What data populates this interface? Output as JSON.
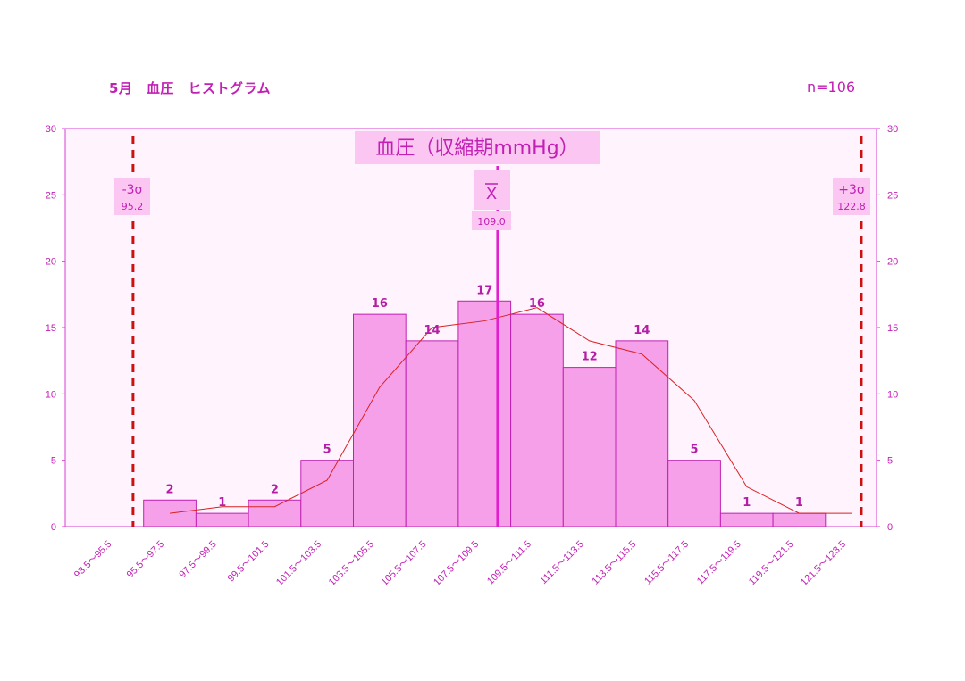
{
  "header": {
    "title": "5月　血圧　ヒストグラム",
    "n_label": "n=106"
  },
  "colors": {
    "bar_fill": "#f7a0ea",
    "bar_stroke": "#c021b2",
    "plot_bg": "#fff3fd",
    "axis": "#d63fd0",
    "text": "#c21fb4",
    "sigma_line": "#cc1111",
    "mean_line": "#e21fce",
    "trend_line": "#d92222",
    "label_bg": "#fbc6f2"
  },
  "chart_data": {
    "type": "bar",
    "title": "血圧（収縮期mmHg）",
    "categories": [
      "93.5～95.5",
      "95.5～97.5",
      "97.5～99.5",
      "99.5～101.5",
      "101.5～103.5",
      "103.5～105.5",
      "105.5～107.5",
      "107.5～109.5",
      "109.5～111.5",
      "111.5～113.5",
      "113.5～115.5",
      "115.5～117.5",
      "117.5～119.5",
      "119.5～121.5",
      "121.5～123.5"
    ],
    "values": [
      null,
      2,
      1,
      2,
      5,
      16,
      14,
      17,
      16,
      12,
      14,
      5,
      1,
      1,
      null
    ],
    "data_labels": [
      "",
      "2",
      "1",
      "2",
      "5",
      "16",
      "14",
      "17",
      "16",
      "12",
      "14",
      "5",
      "1",
      "1",
      ""
    ],
    "trend_line": [
      null,
      1,
      1.5,
      1.5,
      3.5,
      10.5,
      15,
      15.5,
      16.5,
      14,
      13,
      9.5,
      3,
      1,
      1
    ],
    "ylim": [
      0,
      30
    ],
    "yticks": [
      "0",
      "5",
      "10",
      "15",
      "20",
      "25",
      "30"
    ],
    "grid": false,
    "mean": {
      "symbol": "X",
      "label": "109.0",
      "value": 109.0
    },
    "minus3sigma": {
      "label": "-3σ",
      "value_label": "95.2",
      "value": 95.2
    },
    "plus3sigma": {
      "label": "+3σ",
      "value_label": "122.8",
      "value": 122.8
    }
  }
}
